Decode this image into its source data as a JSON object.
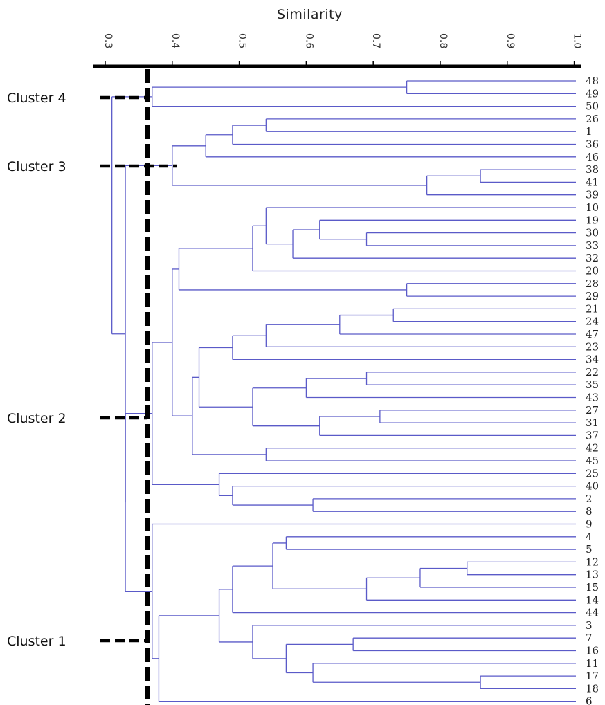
{
  "axis": {
    "title": "Similarity",
    "ticks": [
      "0.3",
      "0.4",
      "0.5",
      "0.6",
      "0.7",
      "0.8",
      "0.9",
      "1.0"
    ]
  },
  "leaves": [
    "48",
    "49",
    "50",
    "26",
    "1",
    "36",
    "46",
    "38",
    "41",
    "39",
    "10",
    "19",
    "30",
    "33",
    "32",
    "20",
    "28",
    "29",
    "21",
    "24",
    "47",
    "23",
    "34",
    "22",
    "35",
    "43",
    "27",
    "31",
    "37",
    "42",
    "45",
    "25",
    "40",
    "2",
    "8",
    "9",
    "4",
    "5",
    "12",
    "13",
    "15",
    "14",
    "44",
    "3",
    "7",
    "16",
    "11",
    "17",
    "18",
    "6"
  ],
  "clusters": [
    {
      "label": "Cluster 4"
    },
    {
      "label": "Cluster 3"
    },
    {
      "label": "Cluster 2"
    },
    {
      "label": "Cluster 1"
    }
  ],
  "cut_similarity": 0.36,
  "colors": {
    "tree": "#5a5ac8",
    "axis": "#000000",
    "cut_line": "#000000"
  },
  "chart_data": {
    "type": "dendrogram",
    "orientation": "horizontal",
    "xlabel": "Similarity",
    "xlim": [
      0.3,
      1.0
    ],
    "merges": [
      {
        "members": [
          "48",
          "49"
        ],
        "similarity": 0.75
      },
      {
        "members": [
          "48",
          "49",
          "50"
        ],
        "similarity": 0.37
      },
      {
        "members": [
          "26",
          "1"
        ],
        "similarity": 0.54
      },
      {
        "members": [
          "26",
          "1",
          "36"
        ],
        "similarity": 0.49
      },
      {
        "members": [
          "26",
          "1",
          "36",
          "46"
        ],
        "similarity": 0.45
      },
      {
        "members": [
          "38",
          "41"
        ],
        "similarity": 0.86
      },
      {
        "members": [
          "38",
          "41",
          "39"
        ],
        "similarity": 0.78
      },
      {
        "members": [
          "26",
          "1",
          "36",
          "46",
          "38",
          "41",
          "39"
        ],
        "similarity": 0.4
      },
      {
        "members": [
          "30",
          "33"
        ],
        "similarity": 0.69
      },
      {
        "members": [
          "19",
          "30",
          "33"
        ],
        "similarity": 0.62
      },
      {
        "members": [
          "19",
          "30",
          "33",
          "32"
        ],
        "similarity": 0.58
      },
      {
        "members": [
          "10",
          "19",
          "30",
          "33",
          "32"
        ],
        "similarity": 0.54
      },
      {
        "members": [
          "10",
          "19",
          "30",
          "33",
          "32",
          "20"
        ],
        "similarity": 0.52
      },
      {
        "members": [
          "28",
          "29"
        ],
        "similarity": 0.75
      },
      {
        "members": [
          "10",
          "19",
          "30",
          "33",
          "32",
          "20",
          "28",
          "29"
        ],
        "similarity": 0.41
      },
      {
        "members": [
          "21",
          "24"
        ],
        "similarity": 0.73
      },
      {
        "members": [
          "21",
          "24",
          "47"
        ],
        "similarity": 0.65
      },
      {
        "members": [
          "21",
          "24",
          "47",
          "23"
        ],
        "similarity": 0.54
      },
      {
        "members": [
          "21",
          "24",
          "47",
          "23",
          "34"
        ],
        "similarity": 0.49
      },
      {
        "members": [
          "22",
          "35"
        ],
        "similarity": 0.69
      },
      {
        "members": [
          "22",
          "35",
          "43"
        ],
        "similarity": 0.6
      },
      {
        "members": [
          "27",
          "31"
        ],
        "similarity": 0.71
      },
      {
        "members": [
          "27",
          "31",
          "37"
        ],
        "similarity": 0.62
      },
      {
        "members": [
          "22",
          "35",
          "43",
          "27",
          "31",
          "37"
        ],
        "similarity": 0.52
      },
      {
        "members": [
          "21",
          "24",
          "47",
          "23",
          "34",
          "22",
          "35",
          "43",
          "27",
          "31",
          "37"
        ],
        "similarity": 0.44
      },
      {
        "members": [
          "42",
          "45"
        ],
        "similarity": 0.54
      },
      {
        "members": [
          "21",
          "24",
          "47",
          "23",
          "34",
          "22",
          "35",
          "43",
          "27",
          "31",
          "37",
          "42",
          "45"
        ],
        "similarity": 0.43
      },
      {
        "members": [
          "10",
          "19",
          "30",
          "33",
          "32",
          "20",
          "28",
          "29",
          "21",
          "24",
          "47",
          "23",
          "34",
          "22",
          "35",
          "43",
          "27",
          "31",
          "37",
          "42",
          "45"
        ],
        "similarity": 0.4
      },
      {
        "members": [
          "2",
          "8"
        ],
        "similarity": 0.61
      },
      {
        "members": [
          "40",
          "2",
          "8"
        ],
        "similarity": 0.49
      },
      {
        "members": [
          "25",
          "40",
          "2",
          "8"
        ],
        "similarity": 0.47
      },
      {
        "members": [
          "10",
          "19",
          "30",
          "33",
          "32",
          "20",
          "28",
          "29",
          "21",
          "24",
          "47",
          "23",
          "34",
          "22",
          "35",
          "43",
          "27",
          "31",
          "37",
          "42",
          "45",
          "25",
          "40",
          "2",
          "8"
        ],
        "similarity": 0.37
      },
      {
        "members": [
          "4",
          "5"
        ],
        "similarity": 0.57
      },
      {
        "members": [
          "12",
          "13"
        ],
        "similarity": 0.84
      },
      {
        "members": [
          "12",
          "13",
          "15"
        ],
        "similarity": 0.77
      },
      {
        "members": [
          "12",
          "13",
          "15",
          "14"
        ],
        "similarity": 0.69
      },
      {
        "members": [
          "4",
          "5",
          "12",
          "13",
          "15",
          "14"
        ],
        "similarity": 0.55
      },
      {
        "members": [
          "4",
          "5",
          "12",
          "13",
          "15",
          "14",
          "44"
        ],
        "similarity": 0.49
      },
      {
        "members": [
          "7",
          "16"
        ],
        "similarity": 0.67
      },
      {
        "members": [
          "17",
          "18"
        ],
        "similarity": 0.86
      },
      {
        "members": [
          "11",
          "17",
          "18"
        ],
        "similarity": 0.61
      },
      {
        "members": [
          "7",
          "16",
          "11",
          "17",
          "18"
        ],
        "similarity": 0.57
      },
      {
        "members": [
          "3",
          "7",
          "16",
          "11",
          "17",
          "18"
        ],
        "similarity": 0.52
      },
      {
        "members": [
          "4",
          "5",
          "12",
          "13",
          "15",
          "14",
          "44",
          "3",
          "7",
          "16",
          "11",
          "17",
          "18"
        ],
        "similarity": 0.47
      },
      {
        "members": [
          "4",
          "5",
          "12",
          "13",
          "15",
          "14",
          "44",
          "3",
          "7",
          "16",
          "11",
          "17",
          "18",
          "6"
        ],
        "similarity": 0.38
      },
      {
        "members": [
          "9",
          "4",
          "5",
          "12",
          "13",
          "15",
          "14",
          "44",
          "3",
          "7",
          "16",
          "11",
          "17",
          "18",
          "6"
        ],
        "similarity": 0.37
      },
      {
        "members": [
          "cluster2",
          "cluster1"
        ],
        "similarity": 0.33
      },
      {
        "members": [
          "cluster3",
          "cluster2",
          "cluster1"
        ],
        "similarity": 0.33
      },
      {
        "members": [
          "cluster4",
          "cluster3",
          "cluster2",
          "cluster1"
        ],
        "similarity": 0.31
      }
    ]
  }
}
